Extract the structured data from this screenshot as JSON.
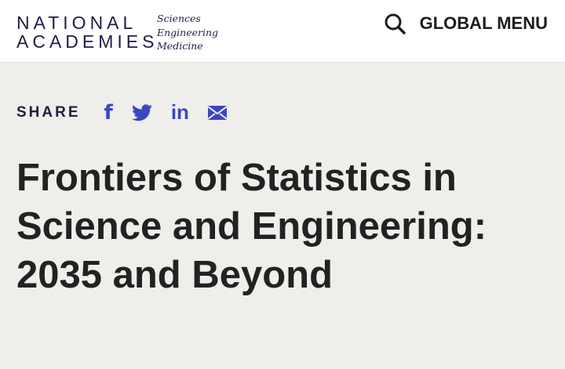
{
  "header": {
    "logo": [
      "NATIONAL",
      "ACADEMIES"
    ],
    "tagline": [
      "Sciences",
      "Engineering",
      "Medicine"
    ],
    "menu_label": "GLOBAL MENU"
  },
  "share": {
    "label": "SHARE",
    "icons": [
      "facebook-icon",
      "twitter-icon",
      "linkedin-icon",
      "email-icon"
    ],
    "icon_color": "#3d46c2"
  },
  "title": "Frontiers of Statistics in Science and Engineering: 2035 and Beyond"
}
